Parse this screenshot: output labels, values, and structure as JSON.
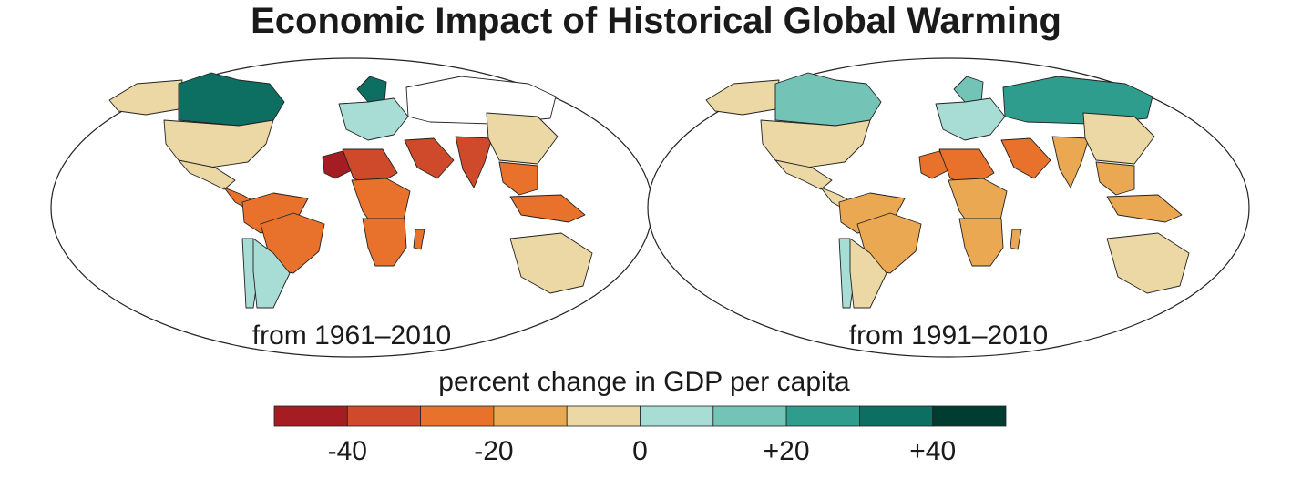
{
  "title": "Economic Impact of Historical Global Warming",
  "colors": {
    "bins": [
      "#a51c22",
      "#cf4a2a",
      "#e8722c",
      "#eba853",
      "#ecd8a4",
      "#a7ddd5",
      "#73c3b6",
      "#2f9d8d",
      "#0c6f62",
      "#003c31"
    ],
    "none": "#ffffff",
    "outline": "#222222"
  },
  "panels": [
    {
      "label": "from 1961–2010",
      "regions": [
        {
          "name": "Alaska",
          "bin": 4
        },
        {
          "name": "Canada",
          "bin": 8
        },
        {
          "name": "United States",
          "bin": 4
        },
        {
          "name": "Mexico",
          "bin": 4
        },
        {
          "name": "Central America",
          "bin": 2
        },
        {
          "name": "Northern South America",
          "bin": 2
        },
        {
          "name": "Brazil",
          "bin": 2
        },
        {
          "name": "Chile",
          "bin": 5
        },
        {
          "name": "Argentina",
          "bin": 5
        },
        {
          "name": "Scandinavia",
          "bin": 8
        },
        {
          "name": "Europe",
          "bin": 5
        },
        {
          "name": "Russia",
          "bin": null
        },
        {
          "name": "Mali",
          "bin": 0
        },
        {
          "name": "West Africa",
          "bin": 1
        },
        {
          "name": "Central Africa",
          "bin": 2
        },
        {
          "name": "Southern Africa",
          "bin": 2
        },
        {
          "name": "Madagascar",
          "bin": 2
        },
        {
          "name": "Arabia",
          "bin": 1
        },
        {
          "name": "India",
          "bin": 1
        },
        {
          "name": "China",
          "bin": 4
        },
        {
          "name": "Southeast Asia",
          "bin": 2
        },
        {
          "name": "Indonesia",
          "bin": 2
        },
        {
          "name": "Australia",
          "bin": 4
        }
      ]
    },
    {
      "label": "from 1991–2010",
      "regions": [
        {
          "name": "Alaska",
          "bin": 4
        },
        {
          "name": "Canada",
          "bin": 6
        },
        {
          "name": "United States",
          "bin": 4
        },
        {
          "name": "Mexico",
          "bin": 4
        },
        {
          "name": "Central America",
          "bin": 4
        },
        {
          "name": "Northern South America",
          "bin": 3
        },
        {
          "name": "Brazil",
          "bin": 3
        },
        {
          "name": "Chile",
          "bin": 5
        },
        {
          "name": "Argentina",
          "bin": 4
        },
        {
          "name": "Scandinavia",
          "bin": 6
        },
        {
          "name": "Europe",
          "bin": 5
        },
        {
          "name": "Russia",
          "bin": 7
        },
        {
          "name": "Mali",
          "bin": 2
        },
        {
          "name": "West Africa",
          "bin": 2
        },
        {
          "name": "Central Africa",
          "bin": 3
        },
        {
          "name": "Southern Africa",
          "bin": 3
        },
        {
          "name": "Madagascar",
          "bin": 3
        },
        {
          "name": "Arabia",
          "bin": 2
        },
        {
          "name": "India",
          "bin": 3
        },
        {
          "name": "China",
          "bin": 4
        },
        {
          "name": "Southeast Asia",
          "bin": 3
        },
        {
          "name": "Indonesia",
          "bin": 3
        },
        {
          "name": "Australia",
          "bin": 4
        }
      ]
    }
  ],
  "legend": {
    "title": "percent change in GDP per capita",
    "range": [
      -50,
      50
    ],
    "step": 10,
    "ticks": [
      "-40",
      "-20",
      "0",
      "+20",
      "+40"
    ],
    "tick_values": [
      -40,
      -20,
      0,
      20,
      40
    ]
  }
}
